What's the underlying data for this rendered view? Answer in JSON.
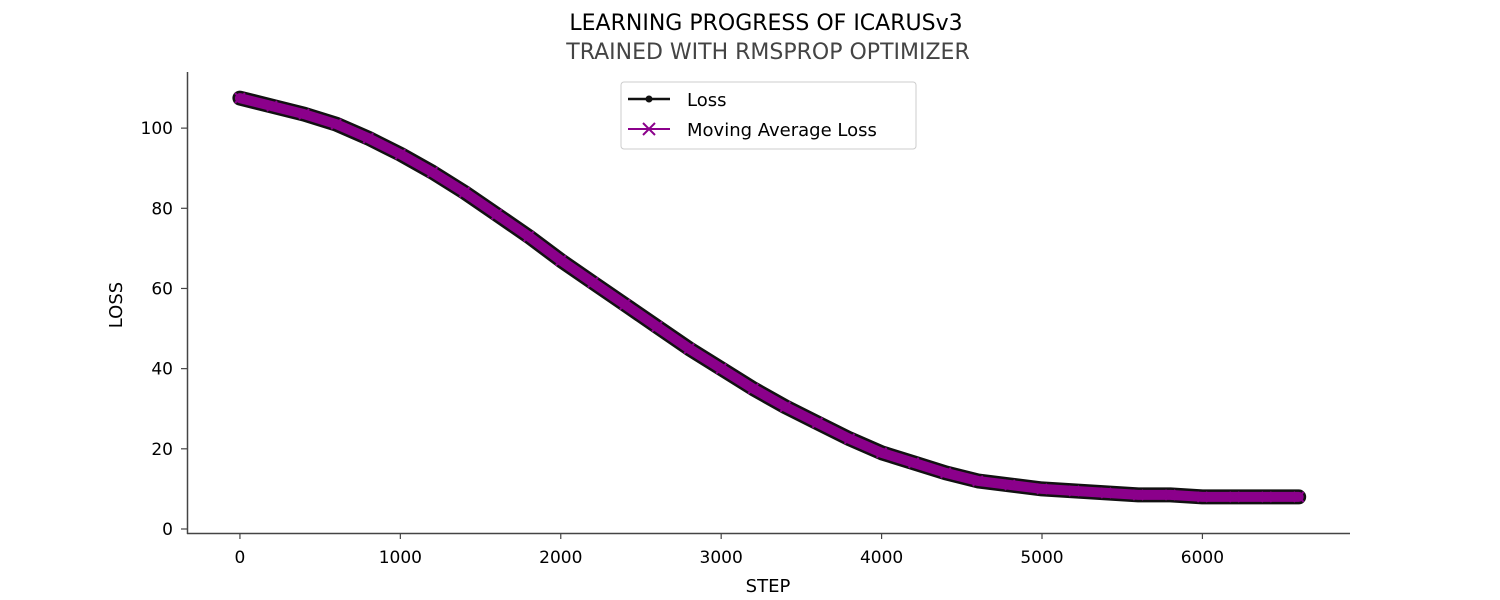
{
  "chart_data": {
    "type": "line",
    "title": "LEARNING PROGRESS OF ICARUSv3",
    "subtitle": "TRAINED WITH RMSPROP OPTIMIZER",
    "xlabel": "STEP",
    "ylabel": "LOSS",
    "xlim": [
      -330,
      6920
    ],
    "ylim": [
      -1,
      114
    ],
    "xticks": [
      0,
      1000,
      2000,
      3000,
      4000,
      5000,
      6000
    ],
    "yticks": [
      0,
      20,
      40,
      60,
      80,
      100
    ],
    "grid": false,
    "legend_position": "top-center",
    "series": [
      {
        "name": "Loss",
        "color": "#111111",
        "marker": "point",
        "x": [
          0,
          200,
          400,
          600,
          800,
          1000,
          1200,
          1400,
          1600,
          1800,
          2000,
          2200,
          2400,
          2600,
          2800,
          3000,
          3200,
          3400,
          3600,
          3800,
          4000,
          4200,
          4400,
          4600,
          4800,
          5000,
          5200,
          5400,
          5600,
          5800,
          6000,
          6200,
          6400,
          6600
        ],
        "values": [
          107.5,
          105.5,
          103.5,
          101,
          97.5,
          93.5,
          89,
          84,
          78.5,
          73,
          67,
          61.5,
          56,
          50.5,
          45,
          40,
          35,
          30.5,
          26.5,
          22.5,
          19,
          16.5,
          14,
          12,
          11,
          10,
          9.5,
          9,
          8.5,
          8.5,
          8,
          8,
          8,
          8
        ]
      },
      {
        "name": "Moving Average Loss",
        "color": "#8b008b",
        "marker": "x",
        "x": [
          0,
          200,
          400,
          600,
          800,
          1000,
          1200,
          1400,
          1600,
          1800,
          2000,
          2200,
          2400,
          2600,
          2800,
          3000,
          3200,
          3400,
          3600,
          3800,
          4000,
          4200,
          4400,
          4600,
          4800,
          5000,
          5200,
          5400,
          5600,
          5800,
          6000,
          6200,
          6400,
          6600
        ],
        "values": [
          107.5,
          105.5,
          103.5,
          101,
          97.5,
          93.5,
          89,
          84,
          78.5,
          73,
          67,
          61.5,
          56,
          50.5,
          45,
          40,
          35,
          30.5,
          26.5,
          22.5,
          19,
          16.5,
          14,
          12,
          11,
          10,
          9.5,
          9,
          8.5,
          8.5,
          8,
          8,
          8,
          8
        ]
      }
    ]
  }
}
